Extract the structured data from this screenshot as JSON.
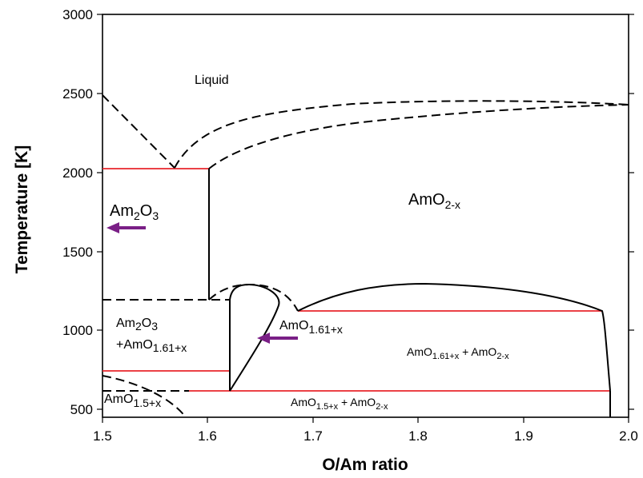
{
  "axes": {
    "xlabel": "O/Am ratio",
    "ylabel": "Temperature [K]",
    "xlim": [
      1.5,
      2.0
    ],
    "ylim": [
      450,
      3000
    ],
    "xticks": [
      "1.5",
      "1.6",
      "1.7",
      "1.8",
      "1.9",
      "2.0"
    ],
    "yticks": [
      "500",
      "1000",
      "1500",
      "2000",
      "2500",
      "3000"
    ]
  },
  "regions": {
    "liquid": "Liquid",
    "amo2x": {
      "base": "AmO",
      "sub": "2-x"
    },
    "am2o3": {
      "base": "Am",
      "sub1": "2",
      "mid": "O",
      "sub2": "3"
    },
    "am2o3_mix": {
      "line1_base": "Am",
      "line1_sub1": "2",
      "line1_mid": "O",
      "line1_sub2": "3",
      "line2_base": "+AmO",
      "line2_sub": "1.61+x"
    },
    "amo161": {
      "base": "AmO",
      "sub": "1.61+x"
    },
    "amo161_amo2": {
      "a": "AmO",
      "a_sub": "1.61+x",
      "plus": " + AmO",
      "b_sub": "2-x"
    },
    "amo15": {
      "base": "AmO",
      "sub": "1.5+x"
    },
    "amo15_amo2": {
      "a": "AmO",
      "a_sub": "1.5+x",
      "plus": " + AmO",
      "b_sub": "2-x"
    }
  },
  "colors": {
    "boundary": "#000000",
    "isotherm": "#e8262c",
    "arrow": "#7a1f86"
  }
}
